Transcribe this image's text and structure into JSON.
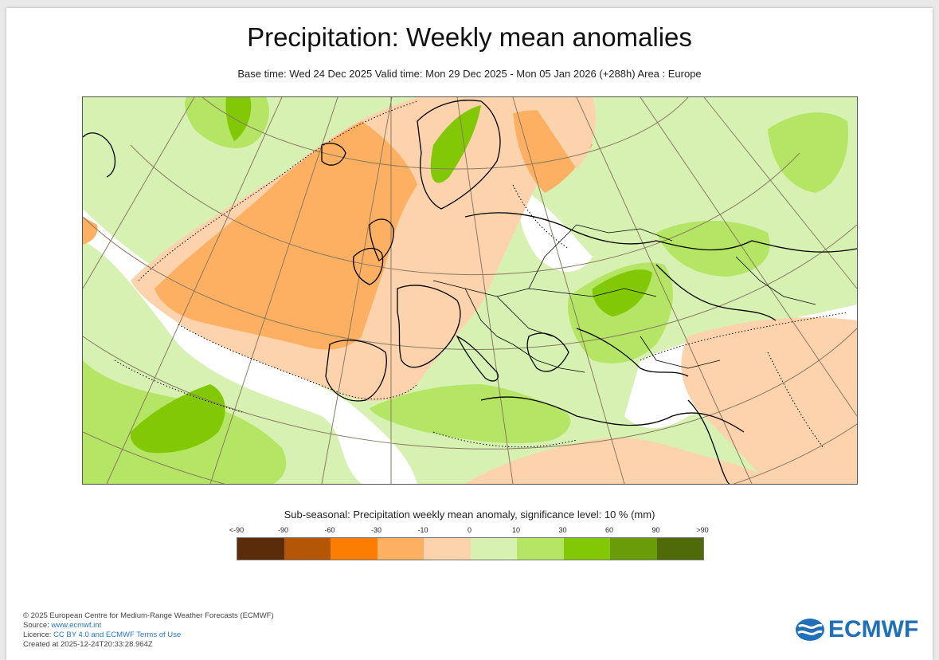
{
  "title": "Precipitation: Weekly mean anomalies",
  "subtitle": "Base time: Wed 24 Dec 2025 Valid time: Mon 29 Dec 2025 - Mon 05 Jan 2026 (+288h) Area : Europe",
  "legend": {
    "title": "Sub-seasonal: Precipitation weekly mean anomaly, significance level: 10 % (mm)",
    "labels": [
      "<-90",
      "-90",
      "-60",
      "-30",
      "-10",
      "0",
      "10",
      "30",
      "60",
      "90",
      ">90"
    ],
    "colors": [
      "#5b2c0a",
      "#b35606",
      "#fb7d02",
      "#fdb062",
      "#fdd3ad",
      "#d7f1b3",
      "#b4e564",
      "#82c807",
      "#6a9b09",
      "#4f6a08"
    ]
  },
  "map_colors": {
    "dry_strong": "#fdb062",
    "dry_weak": "#fdd3ad",
    "wet_weak": "#d7f1b3",
    "wet_mid": "#b4e564",
    "wet_strong": "#82c807",
    "neutral": "#ffffff"
  },
  "footer": {
    "copyright": "© 2025 European Centre for Medium-Range Weather Forecasts (ECMWF)",
    "source_label": "Source: ",
    "source_link": "www.ecmwf.int",
    "licence_label": "Licence: ",
    "licence_link": "CC BY 4.0 and ECMWF Terms of Use",
    "created": "Created at 2025-12-24T20:33:28.964Z"
  },
  "logo": {
    "text": "ECMWF",
    "icon": "ecmwf-logo-icon",
    "color": "#1f70b8"
  }
}
